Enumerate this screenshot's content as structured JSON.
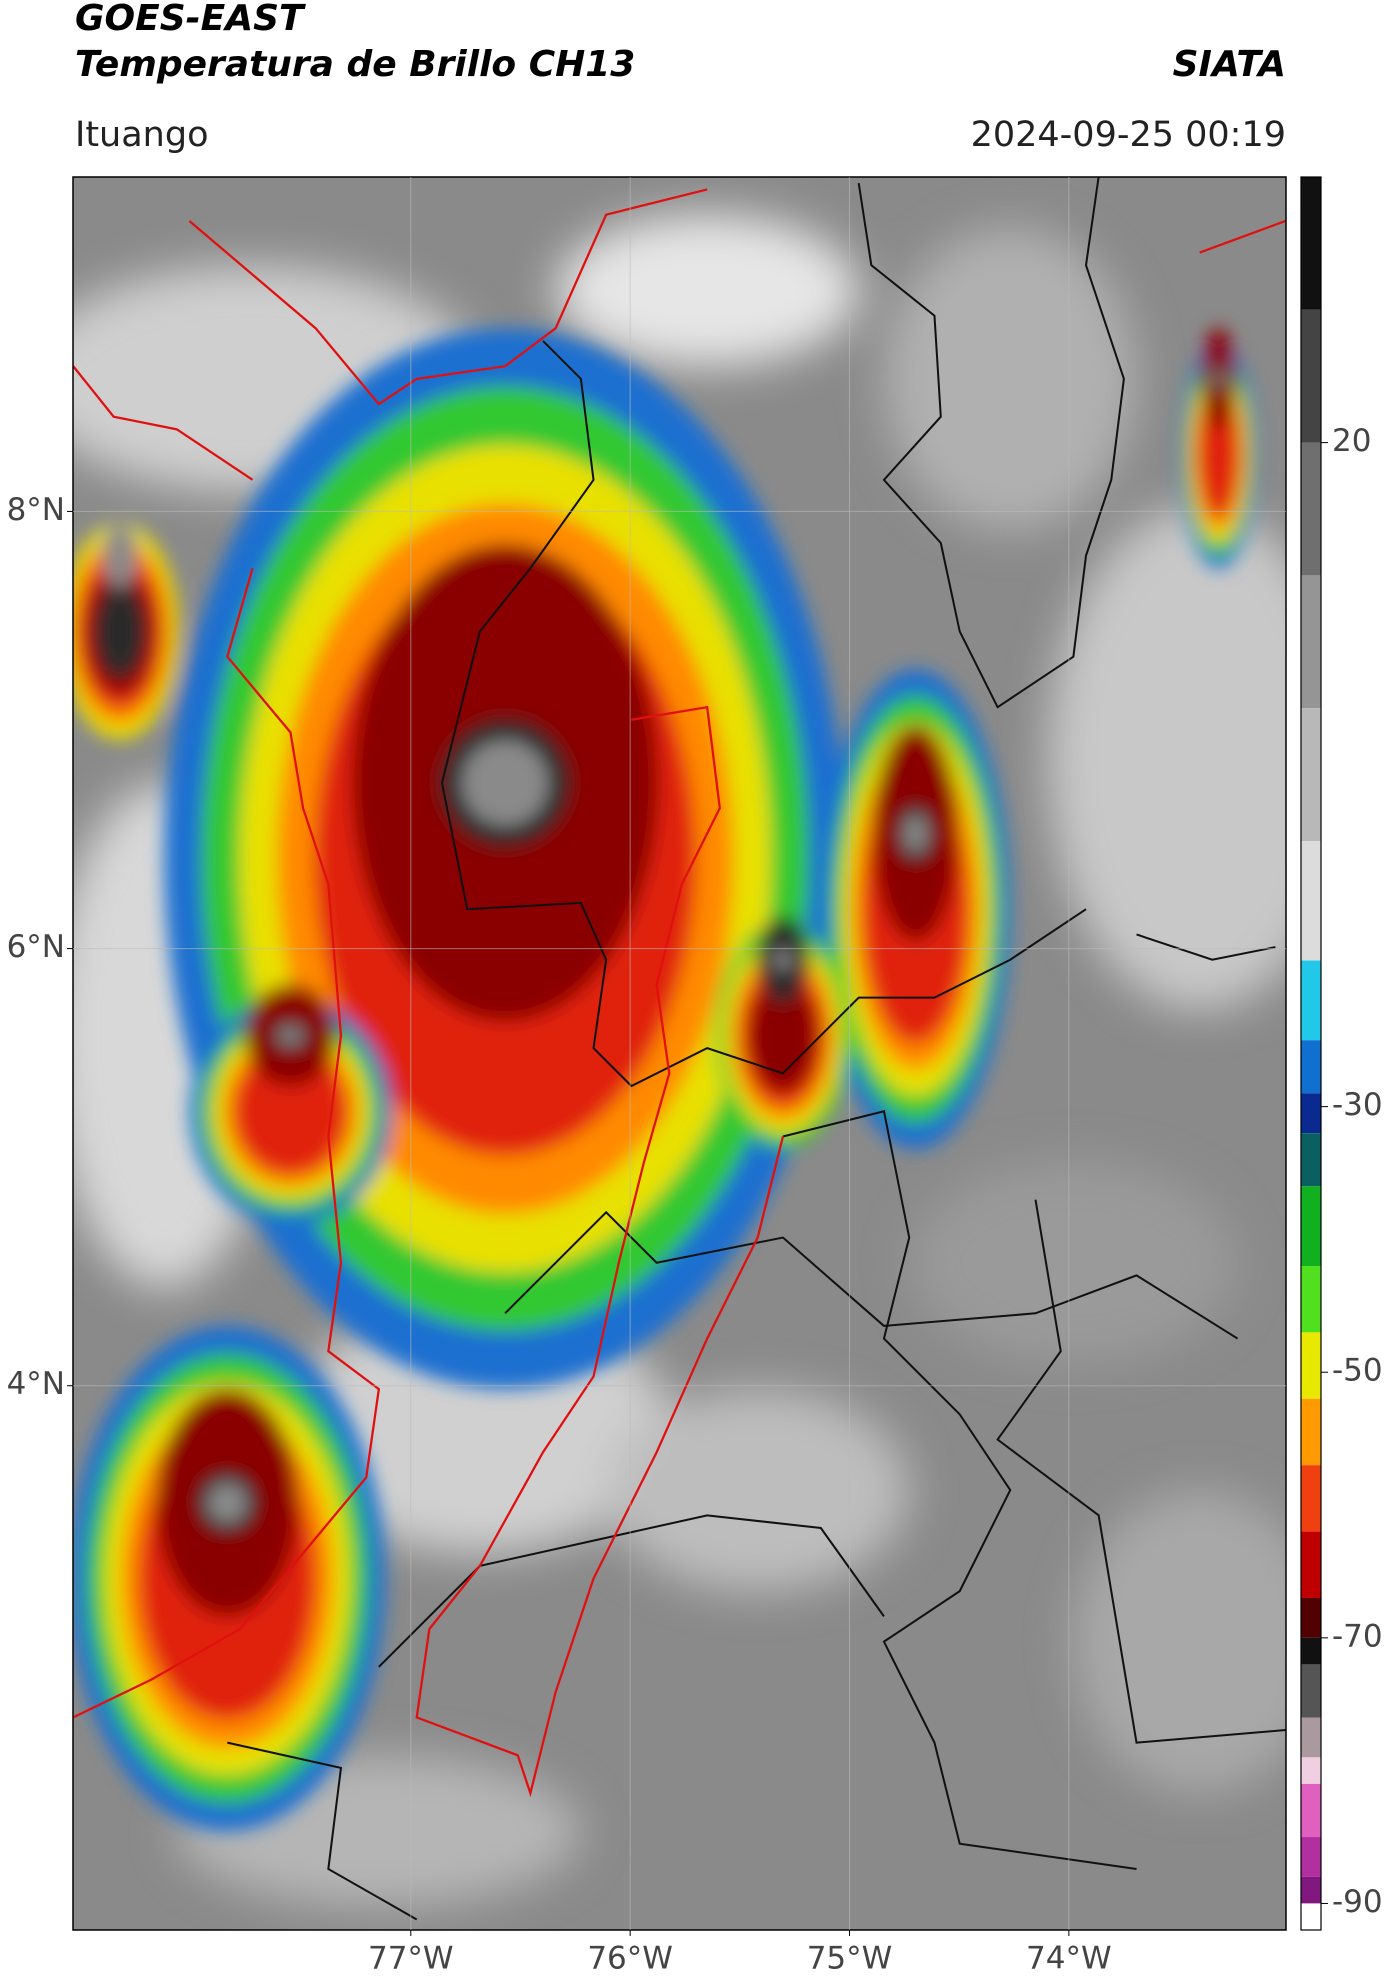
{
  "header": {
    "title": "GOES-EAST",
    "subtitle": "Temperatura de Brillo CH13",
    "brand": "SIATA",
    "location": "Ituango",
    "datetime": "2024-09-25 00:19"
  },
  "map": {
    "xlim": [
      -78.54,
      -73.01
    ],
    "ylim": [
      1.51,
      9.53
    ],
    "grid": true,
    "xticks": [
      {
        "value": -77,
        "label": "77°W"
      },
      {
        "value": -76,
        "label": "76°W"
      },
      {
        "value": -75,
        "label": "75°W"
      },
      {
        "value": -74,
        "label": "74°W"
      }
    ],
    "yticks": [
      {
        "value": 4,
        "label": "4°N"
      },
      {
        "value": 6,
        "label": "6°N"
      },
      {
        "value": 8,
        "label": "8°N"
      }
    ]
  },
  "colorbar": {
    "lim": [
      -92,
      40
    ],
    "ticks": [
      20,
      -30,
      -50,
      -70,
      -90
    ],
    "colormap": [
      {
        "value": 40,
        "color": "#111111"
      },
      {
        "value": 30,
        "color": "#444444"
      },
      {
        "value": 20,
        "color": "#6f6f6f"
      },
      {
        "value": 10,
        "color": "#959595"
      },
      {
        "value": 0,
        "color": "#b8b8b8"
      },
      {
        "value": -10,
        "color": "#dcdcdc"
      },
      {
        "value": -19,
        "color": "#22c8e8"
      },
      {
        "value": -25,
        "color": "#1070d0"
      },
      {
        "value": -29,
        "color": "#0a2a90"
      },
      {
        "value": -32,
        "color": "#0a6060"
      },
      {
        "value": -36,
        "color": "#10b020"
      },
      {
        "value": -42,
        "color": "#50e020"
      },
      {
        "value": -47,
        "color": "#e8e800"
      },
      {
        "value": -52,
        "color": "#ff9a00"
      },
      {
        "value": -57,
        "color": "#f04010"
      },
      {
        "value": -62,
        "color": "#c00000"
      },
      {
        "value": -67,
        "color": "#500000"
      },
      {
        "value": -70,
        "color": "#111111"
      },
      {
        "value": -72,
        "color": "#555555"
      },
      {
        "value": -76,
        "color": "#aa9aa0"
      },
      {
        "value": -79,
        "color": "#f0d0e0"
      },
      {
        "value": -81,
        "color": "#e060c0"
      },
      {
        "value": -85,
        "color": "#b030a0"
      },
      {
        "value": -88,
        "color": "#801880"
      },
      {
        "value": -90,
        "color": "#ffffff"
      }
    ]
  }
}
